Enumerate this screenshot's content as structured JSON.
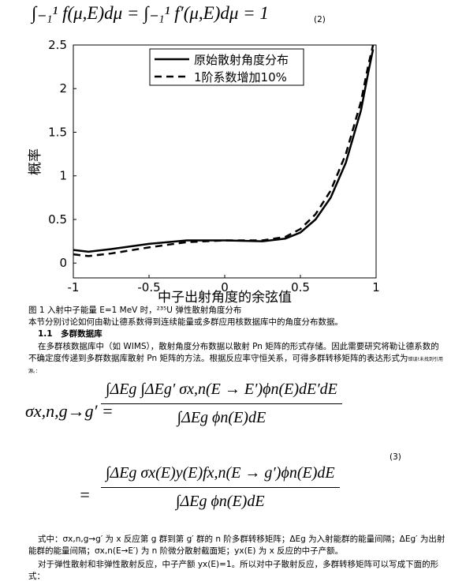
{
  "equation_2": {
    "text": "∫₋₁¹ f(μ,E)dμ = ∫₋₁¹ f′(μ,E)dμ = 1",
    "number": "(2)"
  },
  "chart_data": {
    "type": "line",
    "x": [
      -1,
      -0.9,
      -0.75,
      -0.5,
      -0.25,
      0,
      0.25,
      0.4,
      0.5,
      0.6,
      0.7,
      0.8,
      0.9,
      0.95,
      0.98
    ],
    "series": [
      {
        "name": "原始散射角度分布",
        "color": "#000000",
        "dash": "solid",
        "values": [
          0.15,
          0.13,
          0.16,
          0.22,
          0.26,
          0.26,
          0.25,
          0.28,
          0.35,
          0.5,
          0.75,
          1.15,
          1.75,
          2.2,
          2.45
        ]
      },
      {
        "name": "1阶系数增加10%",
        "color": "#000000",
        "dash": "dashed",
        "values": [
          0.1,
          0.08,
          0.11,
          0.18,
          0.24,
          0.26,
          0.26,
          0.3,
          0.39,
          0.56,
          0.83,
          1.25,
          1.85,
          2.28,
          2.5
        ]
      }
    ],
    "xlabel": "中子出射角度的余弦值",
    "ylabel": "概率",
    "xlim": [
      -1,
      1
    ],
    "xticks": [
      -1,
      -0.5,
      0,
      0.5,
      1
    ],
    "ylim": [
      -0.17,
      2.5
    ],
    "yticks": [
      0,
      0.5,
      1,
      1.5,
      2,
      2.5
    ],
    "legend": "top"
  },
  "caption": "图 1 入射中子能量 E=1 MeV 时，²³⁵U 弹性散射角度分布",
  "paragraph_1": "本节分别讨论如何由勒让德系数得到连续能量或多群应用核数据库中的角度分布数据。",
  "heading": "1.1　多群数据库",
  "paragraph_2": "在多群核数据库中（如 WIMS），散射角度分布数据以散射 Pn 矩阵的形式存储。因此需要研究将勒让德系数的不确定度传递到多群数据库散射 Pn 矩阵的方法。根据反应率守恒关系，可得多群转移矩阵的表达形式为",
  "paragraph_2_note": "错误!未找到引用源。：",
  "equation_3": {
    "lhs": "σx,n,g→g′ =",
    "numerator_1": "∫ΔEg ∫ΔEg′ σx,n(E → E′)ϕn(E)dE′dE",
    "denominator_1": "∫ΔEg ϕn(E)dE",
    "equals": "=",
    "numerator_2": "∫ΔEg σx(E)y(E)fx,n(E → g′)ϕn(E)dE",
    "denominator_2": "∫ΔEg ϕn(E)dE",
    "number": "(3)"
  },
  "paragraph_3": "式中：σx,n,g→g′ 为 x 反应第 g 群到第 g′ 群的 n 阶多群转移矩阵；ΔEg 为入射能群的能量间隔；ΔEg′ 为出射能群的能量间隔；σx,n(E→E′) 为 n 阶微分散射截面矩；yx(E) 为 x 反应的中子产额。",
  "paragraph_4": "对于弹性散射和非弹性散射反应，中子产额 yx(E)=1。所以对中子散射反应，多群转移矩阵可以写成下面的形式："
}
